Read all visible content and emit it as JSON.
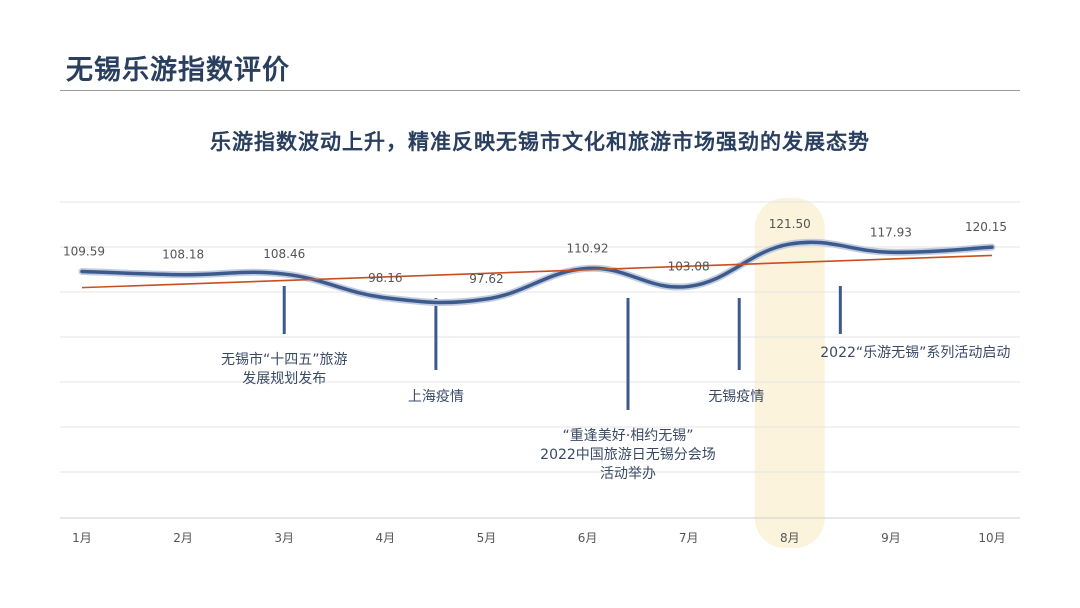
{
  "header": {
    "title": "无锡乐游指数评价",
    "subtitle": "乐游指数波动上升，精准反映无锡市文化和旅游市场强劲的发展态势"
  },
  "chart_data": {
    "type": "line",
    "categories": [
      "1月",
      "2月",
      "3月",
      "4月",
      "5月",
      "6月",
      "7月",
      "8月",
      "9月",
      "10月"
    ],
    "series": [
      {
        "values": [
          109.59,
          108.18,
          108.46,
          98.16,
          97.62,
          110.92,
          103.08,
          121.5,
          117.93,
          120.15
        ]
      }
    ],
    "value_labels": [
      "109.59",
      "108.18",
      "108.46",
      "98.16",
      "97.62",
      "110.92",
      "103.08",
      "121.50",
      "117.93",
      "120.15"
    ],
    "trendline": true,
    "highlight_category": "8月",
    "grid": true,
    "annotations": [
      {
        "id": "plan",
        "at": 2.0,
        "lines": [
          "无锡市“十四五”旅游",
          "发展规划发布"
        ]
      },
      {
        "id": "shanghai",
        "at": 3.5,
        "lines": [
          "上海疫情"
        ]
      },
      {
        "id": "tourism",
        "at": 5.4,
        "lines": [
          "“重逢美好·相约无锡”",
          "2022中国旅游日无锡分会场",
          "活动举办"
        ]
      },
      {
        "id": "wuxi",
        "at": 6.5,
        "lines": [
          "无锡疫情"
        ]
      },
      {
        "id": "leyou",
        "at": 7.5,
        "lines": [
          "2022“乐游无锡”系列活动启动"
        ]
      }
    ],
    "colors": {
      "line": "#3d5a8c",
      "trend": "#c8501e",
      "highlight": "#fbf3dc",
      "marker": "#3d5a8c",
      "text": "#555555",
      "annotation_text": "#3a4a66"
    }
  }
}
